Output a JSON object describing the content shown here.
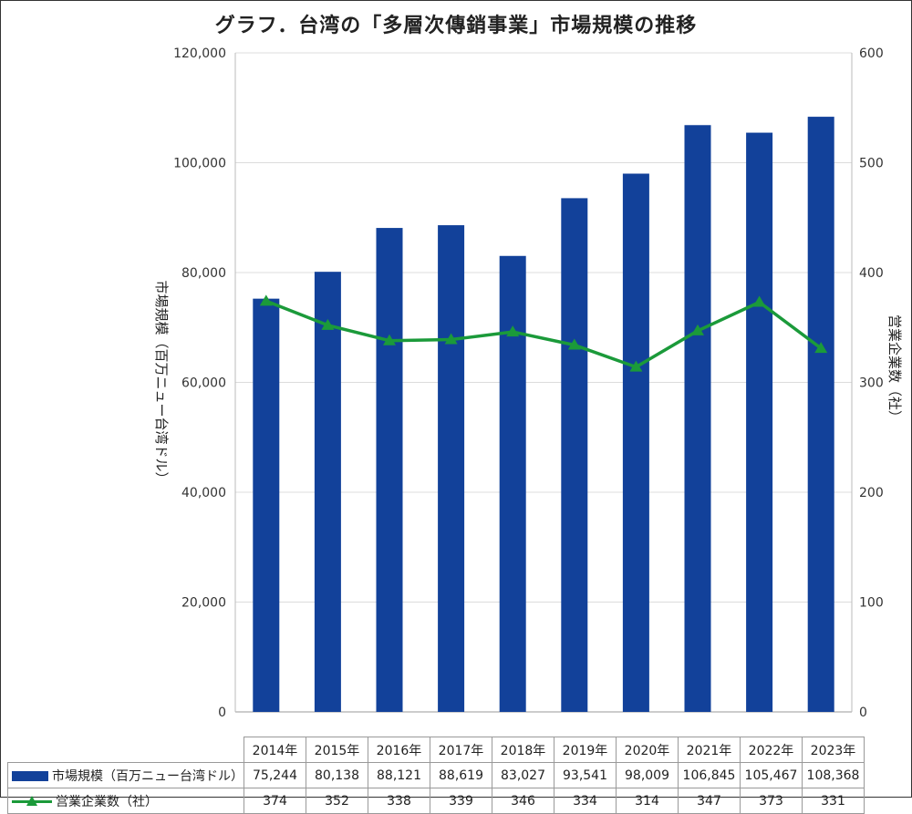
{
  "title": "グラフ．台湾の「多層次傳銷事業」市場規模の推移",
  "chart_data": {
    "type": "bar",
    "categories": [
      "2014年",
      "2015年",
      "2016年",
      "2017年",
      "2018年",
      "2019年",
      "2020年",
      "2021年",
      "2022年",
      "2023年"
    ],
    "series": [
      {
        "name": "市場規模（百万ニュー台湾ドル）",
        "type": "bar",
        "axis": "left",
        "color": "#12419a",
        "values": [
          75244,
          80138,
          88121,
          88619,
          83027,
          93541,
          98009,
          106845,
          105467,
          108368
        ],
        "labels": [
          "75,244",
          "80,138",
          "88,121",
          "88,619",
          "83,027",
          "93,541",
          "98,009",
          "106,845",
          "105,467",
          "108,368"
        ]
      },
      {
        "name": "営業企業数（社）",
        "type": "line",
        "axis": "right",
        "color": "#1b9a3a",
        "marker": "triangle",
        "values": [
          374,
          352,
          338,
          339,
          346,
          334,
          314,
          347,
          373,
          331
        ],
        "labels": [
          "374",
          "352",
          "338",
          "339",
          "346",
          "334",
          "314",
          "347",
          "373",
          "331"
        ]
      }
    ],
    "y_left": {
      "label": "市場規模（百万ニュー台湾ドル）",
      "lim": [
        0,
        120000
      ],
      "ticks": [
        "0",
        "20,000",
        "40,000",
        "60,000",
        "80,000",
        "100,000",
        "120,000"
      ]
    },
    "y_right": {
      "label": "営業企業数（社）",
      "lim": [
        0,
        600
      ],
      "ticks": [
        "0",
        "100",
        "200",
        "300",
        "400",
        "500",
        "600"
      ]
    },
    "grid": "horizontal",
    "legend": "data table below chart"
  }
}
